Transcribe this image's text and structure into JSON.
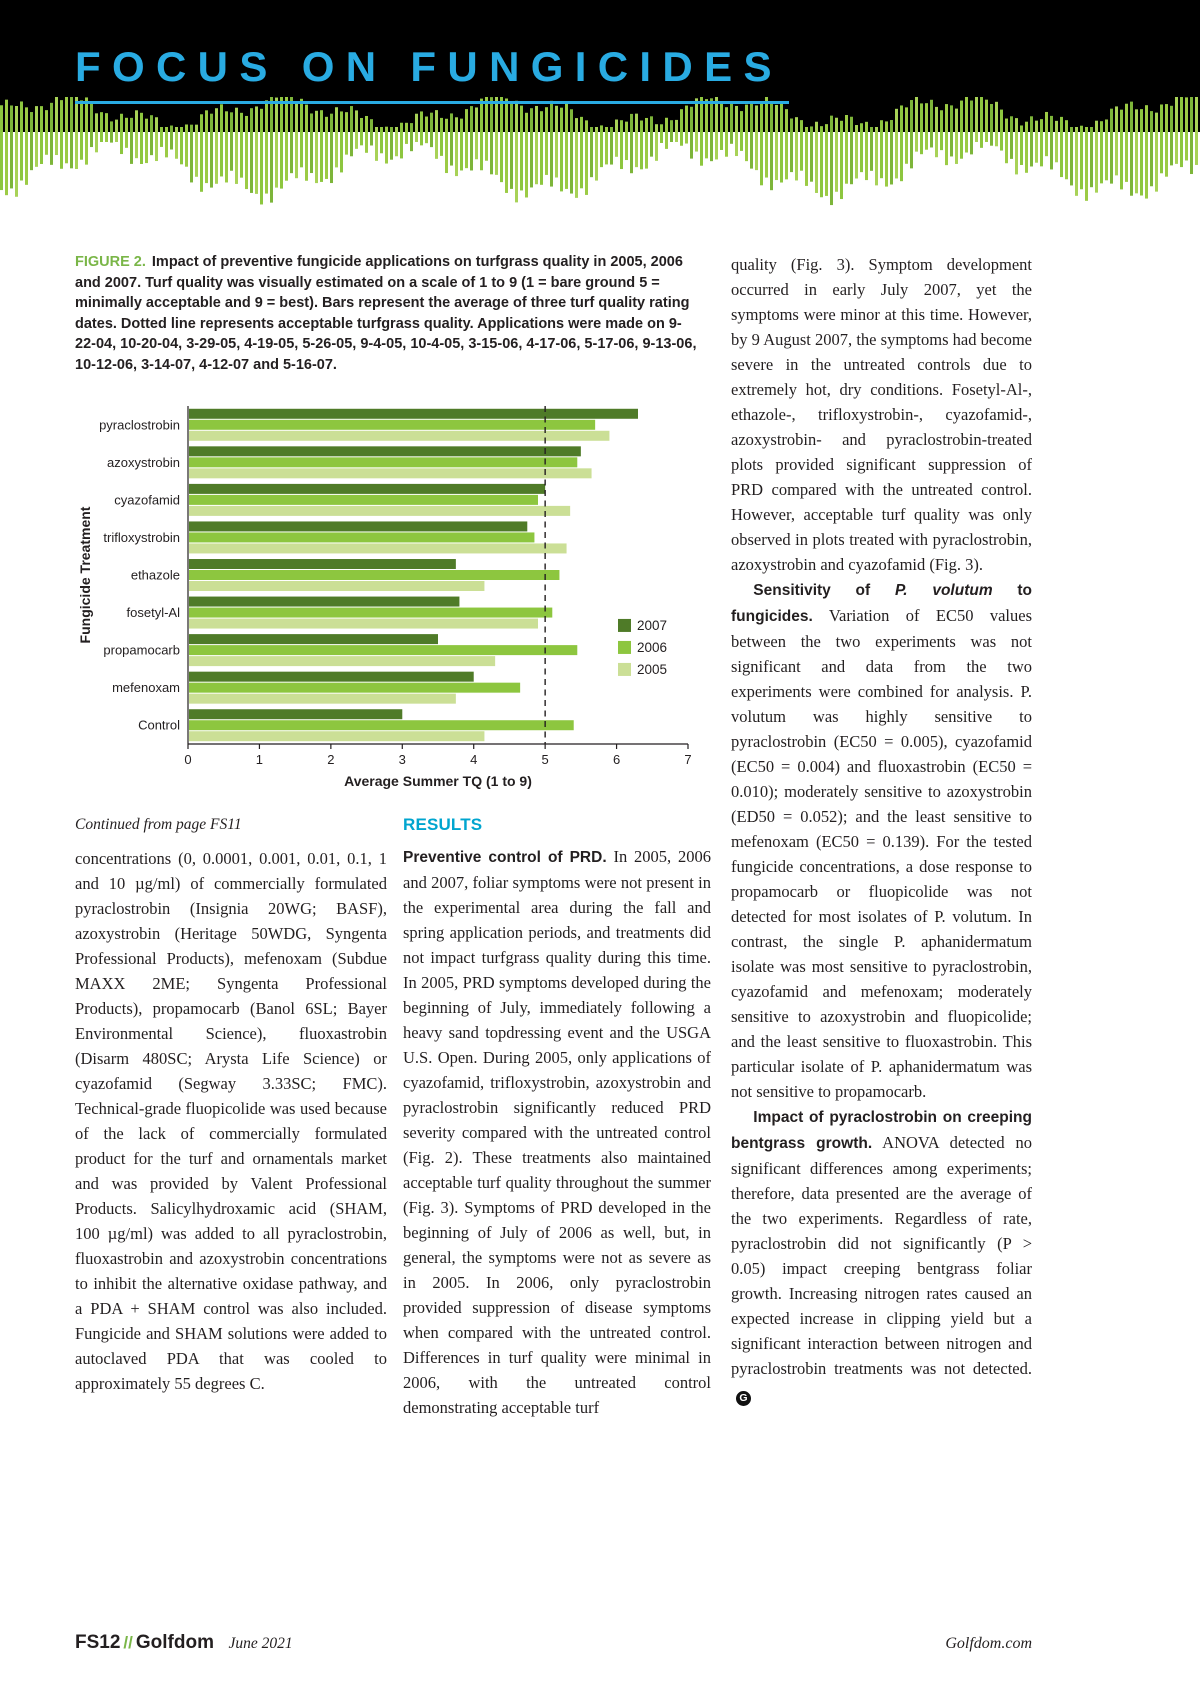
{
  "masthead": {
    "title": "FOCUS ON FUNGICIDES"
  },
  "figure": {
    "label": "FIGURE 2.",
    "caption": "Impact of preventive fungicide applications on turfgrass quality in 2005, 2006 and 2007. Turf quality was visually estimated on a scale of 1 to 9 (1 = bare ground 5 = minimally acceptable and 9 = best). Bars represent the average of three turf quality rating dates. Dotted line represents acceptable turfgrass quality. Applications were made on 9-22-04, 10-20-04, 3-29-05, 4-19-05, 5-26-05, 9-4-05, 10-4-05, 3-15-06, 4-17-06, 5-17-06, 9-13-06, 10-12-06, 3-14-07, 4-12-07 and 5-16-07."
  },
  "chart_data": {
    "type": "bar",
    "orientation": "horizontal",
    "title": "",
    "ylabel": "Fungicide Treatment",
    "xlabel": "Average Summer TQ (1 to 9)",
    "xlim": [
      0,
      7
    ],
    "xticks": [
      0,
      1,
      2,
      3,
      4,
      5,
      6,
      7
    ],
    "acceptable_line_x": 5,
    "grid": false,
    "legend_position": "right-middle",
    "categories": [
      "pyraclostrobin",
      "azoxystrobin",
      "cyazofamid",
      "trifloxystrobin",
      "ethazole",
      "fosetyl-Al",
      "propamocarb",
      "mefenoxam",
      "Control"
    ],
    "series": [
      {
        "name": "2007",
        "color": "#4f7b28",
        "values": [
          6.3,
          5.5,
          5.0,
          4.75,
          3.75,
          3.8,
          3.5,
          4.0,
          3.0
        ]
      },
      {
        "name": "2006",
        "color": "#8dc63f",
        "values": [
          5.7,
          5.45,
          4.9,
          4.85,
          5.2,
          5.1,
          5.45,
          4.65,
          5.4
        ]
      },
      {
        "name": "2005",
        "color": "#cbdf96",
        "values": [
          5.9,
          5.65,
          5.35,
          5.3,
          4.15,
          4.9,
          4.3,
          3.75,
          4.15
        ]
      }
    ]
  },
  "article": {
    "continued_from": "Continued from page FS11",
    "col1_text": "concentrations (0, 0.0001, 0.001, 0.01, 0.1, 1 and 10 µg/ml) of commercially formulated pyraclostrobin (Insignia 20WG; BASF), azoxystrobin (Heritage 50WDG, Syngenta Professional Products), mefenoxam (Subdue MAXX 2ME; Syngenta Professional Products), propamocarb (Banol 6SL; Bayer Environmental Science), fluoxastrobin (Disarm 480SC; Arysta Life Science) or cyazofamid (Segway 3.33SC; FMC). Technical-grade fluopicolide was used because of the lack of commercially formulated product for the turf and ornamentals market and was provided by Valent Professional Products. Salicylhydroxamic acid (SHAM, 100 µg/ml) was added to all pyraclostrobin, fluoxastrobin and azoxystrobin concentrations to inhibit the alternative oxidase pathway, and a PDA + SHAM control was also included. Fungicide and SHAM solutions were added to autoclaved PDA that was cooled to approximately 55 degrees C.",
    "results_heading": "RESULTS",
    "preventive_head": "Preventive control of PRD.",
    "preventive_body": "In 2005, 2006 and 2007, foliar symptoms were not present in the experimental area during the fall and spring application periods, and treatments did not impact turfgrass quality during this time. In 2005, PRD symptoms developed during the beginning of July, immediately following a heavy sand topdressing event and the USGA U.S. Open. During 2005, only applications of cyazofamid, trifloxystrobin, azoxystrobin and pyraclostrobin significantly reduced PRD severity compared with the untreated control (Fig. 2). These treatments also maintained acceptable turf quality throughout the summer (Fig. 3). Symptoms of PRD developed in the beginning of July of 2006 as well, but, in general, the symptoms were not as severe as in 2005. In 2006, only pyraclostrobin provided suppression of disease symptoms when compared with the untreated control. Differences in turf quality were minimal in 2006, with the untreated control demonstrating acceptable turf",
    "col3_p1": "quality (Fig. 3). Symptom development occurred in early July 2007, yet the symptoms were minor at this time. However, by 9 August 2007, the symptoms had become severe in the untreated controls due to extremely hot, dry conditions. Fosetyl-Al-, ethazole-, trifloxystrobin-, cyazofamid-, azoxystrobin- and pyraclostrobin-treated plots provided significant suppression of PRD compared with the untreated control. However, acceptable turf quality was only observed in plots treated with pyraclostrobin, azoxystrobin and cyazofamid (Fig. 3).",
    "sensitivity_head_pre": "Sensitivity of ",
    "sensitivity_head_species": "P. volutum",
    "sensitivity_head_post": " to fungicides.",
    "sensitivity_body": "Variation of EC50 values between the two experiments was not significant and data from the two experiments were combined for analysis. P. volutum was highly sensitive to pyraclostrobin (EC50 = 0.005), cyazofamid (EC50 = 0.004) and fluoxastrobin (EC50 = 0.010); moderately sensitive to azoxystrobin (ED50 = 0.052); and the least sensitive to mefenoxam (EC50 = 0.139). For the tested fungicide concentrations, a dose response to propamocarb or fluopicolide was not detected for most isolates of P. volutum. In contrast, the single P. aphanidermatum isolate was most sensitive to pyraclostrobin, cyazofamid and mefenoxam; moderately sensitive to azoxystrobin and fluopicolide; and the least sensitive to fluoxastrobin. This particular isolate of P. aphanidermatum was not sensitive to propamocarb.",
    "impact_head": "Impact of pyraclostrobin on creeping bentgrass growth.",
    "impact_body": "ANOVA detected no significant differences among experiments; therefore, data presented are the average of the two experiments. Regardless of rate, pyraclostrobin did not significantly (P > 0.05) impact creeping bentgrass foliar growth. Increasing nitrogen rates caused an expected increase in clipping yield but a significant interaction between nitrogen and pyraclostrobin treatments was not detected.",
    "end_mark": "G"
  },
  "footer": {
    "page_number": "FS12",
    "separator": "//",
    "brand": "Golfdom",
    "issue_date": "June 2021",
    "website": "Golfdom.com"
  },
  "colors": {
    "accent_blue": "#29abe2",
    "results_blue": "#00a5cf",
    "accent_green": "#7ab648",
    "bar_2007": "#4f7b28",
    "bar_2006": "#8dc63f",
    "bar_2005": "#cbdf96",
    "text": "#231f20",
    "masthead_bg": "#000000"
  }
}
